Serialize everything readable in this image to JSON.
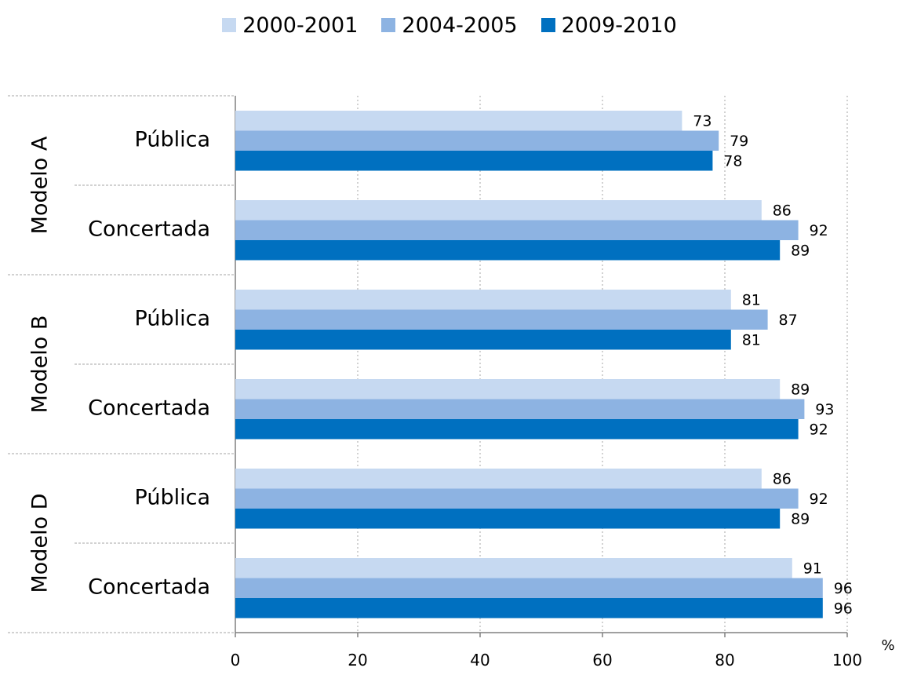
{
  "chart_data": {
    "type": "bar",
    "orientation": "horizontal",
    "groups": [
      {
        "label": "Modelo A",
        "categories": [
          "Pública",
          "Concertada"
        ]
      },
      {
        "label": "Modelo B",
        "categories": [
          "Pública",
          "Concertada"
        ]
      },
      {
        "label": "Modelo D",
        "categories": [
          "Pública",
          "Concertada"
        ]
      }
    ],
    "series": [
      {
        "name": "2000-2001",
        "color": "#c6d9f1",
        "values": [
          73,
          86,
          81,
          89,
          86,
          91
        ]
      },
      {
        "name": "2004-2005",
        "color": "#8db3e2",
        "values": [
          79,
          92,
          87,
          93,
          92,
          96
        ]
      },
      {
        "name": "2009-2010",
        "color": "#0070c0",
        "values": [
          78,
          89,
          81,
          92,
          89,
          96
        ]
      }
    ],
    "x_ticks": [
      "0",
      "20",
      "40",
      "60",
      "80",
      "100"
    ],
    "x_unit": "%",
    "xlim": [
      0,
      100
    ],
    "grid": "vertical-dotted",
    "legend_position": "top"
  }
}
